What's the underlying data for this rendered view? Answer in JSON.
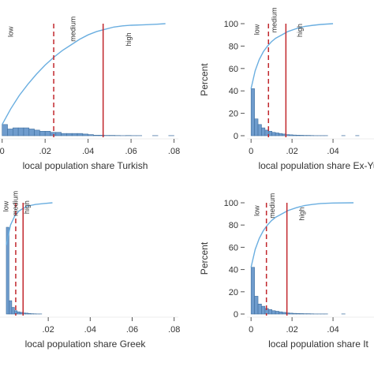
{
  "chart_data": [
    {
      "type": "bar",
      "panel": "top-left",
      "xlabel": "local population share Turkish",
      "ylabel": "",
      "x_ticks": [
        "0",
        ".02",
        ".04",
        ".06",
        ".08"
      ],
      "x_tick_values": [
        0,
        0.02,
        0.04,
        0.06,
        0.08
      ],
      "y_ticks": [],
      "y_tick_values": [],
      "xlim": [
        -0.001,
        0.082
      ],
      "ylim": [
        0,
        100
      ],
      "histogram": {
        "bin_width": 0.0025,
        "values": [
          10,
          6,
          7,
          7,
          7,
          6,
          5,
          4,
          4,
          3,
          3,
          2,
          2,
          2,
          2,
          1.5,
          1,
          0.5,
          0.5,
          0.3,
          0.3,
          0.2,
          0.1,
          0.2,
          0.1,
          0.1,
          0,
          0,
          0.1,
          0,
          0,
          0.1
        ]
      },
      "cumulative": {
        "x": [
          0,
          0.004,
          0.008,
          0.012,
          0.016,
          0.02,
          0.024,
          0.028,
          0.032,
          0.036,
          0.04,
          0.044,
          0.048,
          0.052,
          0.056,
          0.06,
          0.066,
          0.072,
          0.076
        ],
        "y": [
          10,
          24,
          36,
          46,
          55,
          63,
          70,
          76,
          81,
          86,
          90,
          93,
          95,
          97,
          98,
          98.6,
          99,
          99.5,
          100
        ]
      },
      "thresholds": [
        {
          "x": 0.024,
          "style": "dashed",
          "label": "low"
        },
        {
          "x": 0.047,
          "style": "solid",
          "label": "medium"
        }
      ],
      "region_labels": [
        {
          "text": "low",
          "x": 0.005,
          "y": 88
        },
        {
          "text": "medium",
          "x": 0.034,
          "y": 84
        },
        {
          "text": "high",
          "x": 0.06,
          "y": 80
        }
      ]
    },
    {
      "type": "bar",
      "panel": "top-right",
      "xlabel": "local population share Ex-Yu",
      "ylabel": "Percent",
      "x_ticks": [
        "0",
        ".02",
        ".04"
      ],
      "x_tick_values": [
        0,
        0.02,
        0.04
      ],
      "y_ticks": [
        "0",
        "20",
        "40",
        "60",
        "80",
        "100"
      ],
      "y_tick_values": [
        0,
        20,
        40,
        60,
        80,
        100
      ],
      "xlim": [
        -0.002,
        0.06
      ],
      "ylim": [
        0,
        100
      ],
      "histogram": {
        "bin_width": 0.0017,
        "values": [
          42,
          15,
          10,
          7,
          5,
          4,
          3,
          2.5,
          2,
          1.5,
          1,
          0.8,
          0.6,
          0.5,
          0.4,
          0.3,
          0.3,
          0.2,
          0.1,
          0.1,
          0.1,
          0.1,
          0,
          0,
          0,
          0,
          0.1,
          0,
          0,
          0,
          0.1
        ]
      },
      "cumulative": {
        "x": [
          0,
          0.002,
          0.004,
          0.006,
          0.008,
          0.01,
          0.012,
          0.015,
          0.018,
          0.022,
          0.026,
          0.03,
          0.034,
          0.04
        ],
        "y": [
          42,
          58,
          68,
          75,
          80,
          84,
          87,
          90,
          93,
          95.5,
          97.5,
          98.5,
          99.3,
          100
        ]
      },
      "thresholds": [
        {
          "x": 0.0085,
          "style": "dashed",
          "label": "low"
        },
        {
          "x": 0.017,
          "style": "solid",
          "label": "medium"
        }
      ],
      "region_labels": [
        {
          "text": "low",
          "x": 0.004,
          "y": 90
        },
        {
          "text": "medium",
          "x": 0.0125,
          "y": 92
        },
        {
          "text": "high",
          "x": 0.025,
          "y": 88
        }
      ]
    },
    {
      "type": "bar",
      "panel": "bottom-left",
      "xlabel": "local population share Greek",
      "ylabel": "",
      "x_ticks": [
        ".02",
        ".04",
        ".06",
        ".08"
      ],
      "x_tick_values": [
        0.02,
        0.04,
        0.06,
        0.08
      ],
      "y_ticks": [],
      "y_tick_values": [],
      "xlim": [
        -0.003,
        0.082
      ],
      "ylim": [
        0,
        100
      ],
      "histogram": {
        "bin_width": 0.0013,
        "values": [
          78,
          12,
          6,
          3,
          2,
          1.5,
          1,
          0.8,
          0.5,
          0.3,
          0.2,
          0.1,
          0.1
        ]
      },
      "cumulative": {
        "x": [
          0,
          0.002,
          0.004,
          0.006,
          0.008,
          0.01,
          0.014,
          0.018,
          0.022
        ],
        "y": [
          62,
          80,
          88,
          92.5,
          95,
          97,
          98.5,
          99.3,
          100
        ]
      },
      "thresholds": [
        {
          "x": 0.0045,
          "style": "dashed",
          "label": "low"
        },
        {
          "x": 0.008,
          "style": "solid",
          "label": "medium"
        }
      ],
      "region_labels": [
        {
          "text": "low",
          "x": 0.001,
          "y": 92
        },
        {
          "text": "medium",
          "x": 0.0055,
          "y": 88
        },
        {
          "text": "high",
          "x": 0.011,
          "y": 90
        }
      ]
    },
    {
      "type": "bar",
      "panel": "bottom-right",
      "xlabel": "local population share It",
      "ylabel": "Percent",
      "x_ticks": [
        "0",
        ".02",
        ".04"
      ],
      "x_tick_values": [
        0,
        0.02,
        0.04
      ],
      "y_ticks": [
        "0",
        "20",
        "40",
        "60",
        "80",
        "100"
      ],
      "y_tick_values": [
        0,
        20,
        40,
        60,
        80,
        100
      ],
      "xlim": [
        -0.002,
        0.06
      ],
      "ylim": [
        0,
        100
      ],
      "histogram": {
        "bin_width": 0.0017,
        "values": [
          42,
          16,
          9,
          7,
          5,
          4,
          3,
          2.5,
          2,
          1.5,
          1,
          0.8,
          0.6,
          0.5,
          0.4,
          0.3,
          0.3,
          0.2,
          0.1,
          0.1,
          0.1,
          0.1,
          0,
          0,
          0,
          0,
          0.1
        ]
      },
      "cumulative": {
        "x": [
          0,
          0.002,
          0.004,
          0.006,
          0.008,
          0.01,
          0.012,
          0.015,
          0.018,
          0.022,
          0.026,
          0.03,
          0.034,
          0.04,
          0.05
        ],
        "y": [
          42,
          58,
          68,
          75,
          80,
          84,
          87,
          90,
          93,
          95.5,
          97.5,
          98.5,
          99.3,
          99.8,
          100
        ]
      },
      "thresholds": [
        {
          "x": 0.0075,
          "style": "dashed",
          "label": "low"
        },
        {
          "x": 0.0175,
          "style": "solid",
          "label": "medium"
        }
      ],
      "region_labels": [
        {
          "text": "low",
          "x": 0.004,
          "y": 88
        },
        {
          "text": "medium",
          "x": 0.0115,
          "y": 86
        },
        {
          "text": "high",
          "x": 0.026,
          "y": 84
        }
      ]
    }
  ],
  "colors": {
    "bar_fill": "#6f9ccd",
    "bar_stroke": "#3f6f9f",
    "cumulative_line": "#6aaee0",
    "threshold_line": "#c1272d",
    "text": "#333333",
    "axis": "#555555"
  }
}
